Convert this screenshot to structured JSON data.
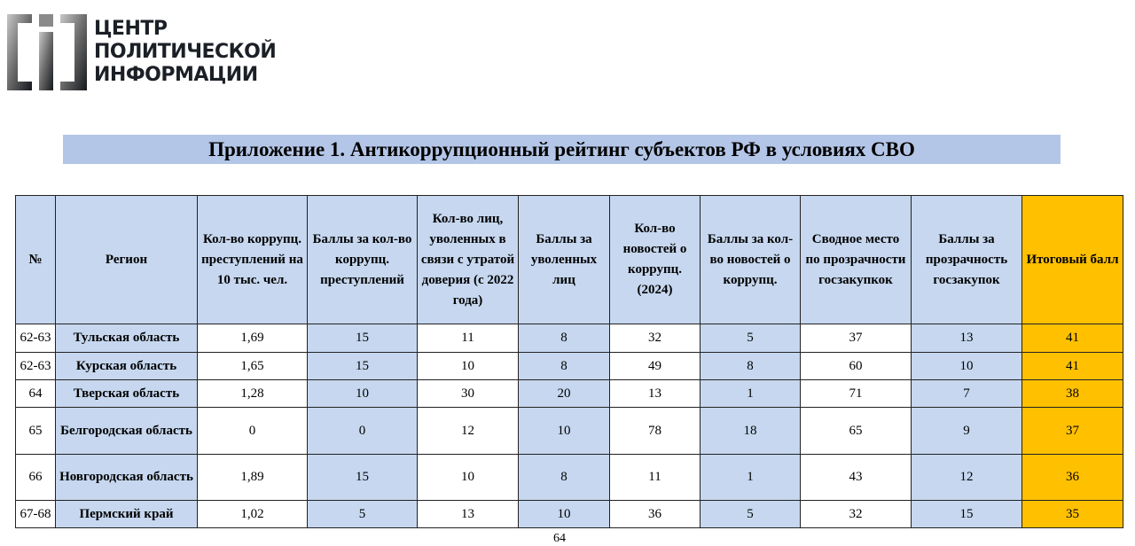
{
  "logo": {
    "text": [
      "ЦЕНТР",
      "ПОЛИТИЧЕСКОЙ",
      "ИНФОРМАЦИИ"
    ]
  },
  "title": "Приложение 1. Антикоррупционный рейтинг субъектов РФ в условиях СВО",
  "colors": {
    "header_blue": "#c6d7ef",
    "title_blue": "#b4c6e7",
    "total_orange": "#ffc000"
  },
  "table": {
    "headers": [
      "№",
      "Регион",
      "Кол-во коррупц. преступлений на 10 тыс. чел.",
      "Баллы за кол-во коррупц. преступлений",
      "Кол-во лиц, уволенных в связи с утратой доверия (с 2022 года)",
      "Баллы за уволенных лиц",
      "Кол-во новостей о коррупц. (2024)",
      "Баллы за кол-во новостей о коррупц.",
      "Сводное место по прозрачности госзакупкок",
      "Баллы за прозрачность госзакупок",
      "Итоговый балл"
    ],
    "rows": [
      [
        "62-63",
        "Тульская область",
        "1,69",
        "15",
        "11",
        "8",
        "32",
        "5",
        "37",
        "13",
        "41"
      ],
      [
        "62-63",
        "Курская область",
        "1,65",
        "15",
        "10",
        "8",
        "49",
        "8",
        "60",
        "10",
        "41"
      ],
      [
        "64",
        "Тверская область",
        "1,28",
        "10",
        "30",
        "20",
        "13",
        "1",
        "71",
        "7",
        "38"
      ],
      [
        "65",
        "Белгородская область",
        "0",
        "0",
        "12",
        "10",
        "78",
        "18",
        "65",
        "9",
        "37"
      ],
      [
        "66",
        "Новгородская область",
        "1,89",
        "15",
        "10",
        "8",
        "11",
        "1",
        "43",
        "12",
        "36"
      ],
      [
        "67-68",
        "Пермский край",
        "1,02",
        "5",
        "13",
        "10",
        "36",
        "5",
        "32",
        "15",
        "35"
      ]
    ]
  },
  "page_number": "64"
}
